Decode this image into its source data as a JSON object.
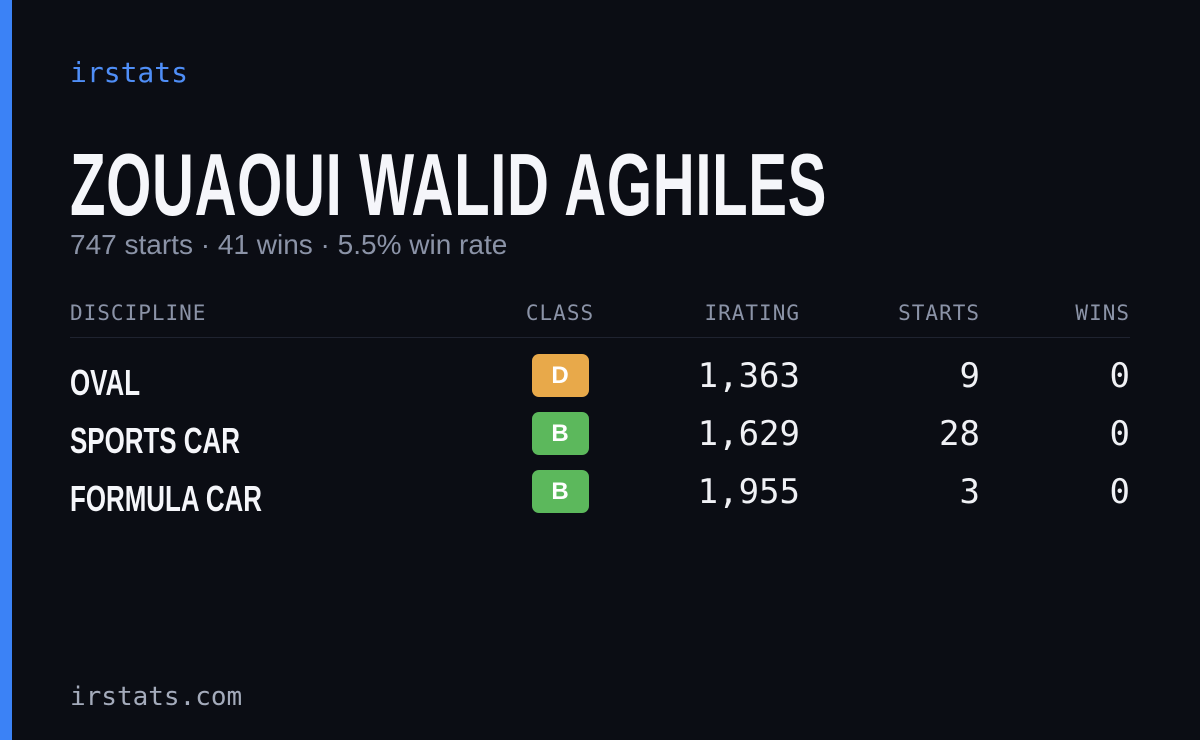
{
  "brand": "irstats",
  "title": "ZOUAOUI WALID AGHILES",
  "subtitle": "747 starts · 41 wins · 5.5% win rate",
  "table": {
    "headers": [
      "DISCIPLINE",
      "CLASS",
      "IRATING",
      "STARTS",
      "WINS"
    ],
    "rows": [
      {
        "discipline": "OVAL",
        "class": "D",
        "class_color": "#e8a94a",
        "irating": "1,363",
        "starts": "9",
        "wins": "0"
      },
      {
        "discipline": "SPORTS CAR",
        "class": "B",
        "class_color": "#5cb85c",
        "irating": "1,629",
        "starts": "28",
        "wins": "0"
      },
      {
        "discipline": "FORMULA CAR",
        "class": "B",
        "class_color": "#5cb85c",
        "irating": "1,955",
        "starts": "3",
        "wins": "0"
      }
    ]
  },
  "footer": "irstats.com"
}
